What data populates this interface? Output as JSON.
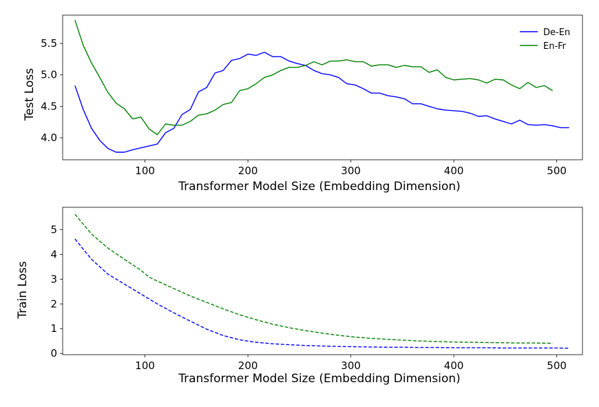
{
  "chart_data": [
    {
      "type": "line",
      "xlabel": "Transformer Model Size (Embedding Dimension)",
      "ylabel": "Test Loss",
      "xlim": [
        20,
        525
      ],
      "ylim": [
        3.65,
        5.95
      ],
      "xticks": [
        100,
        200,
        300,
        400,
        500
      ],
      "yticks": [
        4.0,
        4.5,
        5.0,
        5.5
      ],
      "ytick_decimals": 1,
      "grid": false,
      "legend": "top-right",
      "series": [
        {
          "name": "De-En",
          "color": "#0000ff",
          "style": "solid",
          "x": [
            32,
            40,
            48,
            56,
            64,
            72,
            80,
            88,
            96,
            104,
            112,
            120,
            128,
            136,
            144,
            152,
            160,
            168,
            176,
            184,
            192,
            200,
            208,
            216,
            224,
            232,
            240,
            248,
            256,
            264,
            272,
            280,
            288,
            296,
            304,
            312,
            320,
            328,
            336,
            344,
            352,
            360,
            368,
            376,
            384,
            392,
            400,
            408,
            416,
            424,
            432,
            440,
            448,
            456,
            464,
            472,
            480,
            488,
            496,
            504,
            512
          ],
          "values": [
            4.83,
            4.45,
            4.15,
            3.96,
            3.83,
            3.77,
            3.77,
            3.81,
            3.84,
            3.87,
            3.9,
            4.08,
            4.15,
            4.37,
            4.45,
            4.73,
            4.8,
            5.03,
            5.07,
            5.23,
            5.26,
            5.33,
            5.31,
            5.36,
            5.29,
            5.29,
            5.22,
            5.18,
            5.15,
            5.07,
            5.02,
            5.0,
            4.96,
            4.86,
            4.84,
            4.78,
            4.71,
            4.71,
            4.67,
            4.65,
            4.62,
            4.54,
            4.54,
            4.5,
            4.46,
            4.44,
            4.43,
            4.42,
            4.39,
            4.34,
            4.35,
            4.3,
            4.26,
            4.22,
            4.28,
            4.21,
            4.2,
            4.21,
            4.19,
            4.16,
            4.16
          ]
        },
        {
          "name": "En-Fr",
          "color": "#008000",
          "style": "solid",
          "x": [
            32,
            40,
            48,
            56,
            64,
            72,
            80,
            88,
            96,
            104,
            112,
            120,
            128,
            136,
            144,
            152,
            160,
            168,
            176,
            184,
            192,
            200,
            208,
            216,
            224,
            232,
            240,
            248,
            256,
            264,
            272,
            280,
            288,
            296,
            304,
            312,
            320,
            328,
            336,
            344,
            352,
            360,
            368,
            376,
            384,
            392,
            400,
            408,
            416,
            424,
            432,
            440,
            448,
            456,
            464,
            472,
            480,
            488,
            496
          ],
          "values": [
            5.87,
            5.47,
            5.19,
            4.96,
            4.72,
            4.55,
            4.46,
            4.3,
            4.33,
            4.14,
            4.05,
            4.22,
            4.2,
            4.2,
            4.26,
            4.36,
            4.38,
            4.44,
            4.53,
            4.56,
            4.75,
            4.78,
            4.86,
            4.96,
            5.0,
            5.07,
            5.12,
            5.12,
            5.15,
            5.21,
            5.16,
            5.22,
            5.22,
            5.24,
            5.21,
            5.21,
            5.14,
            5.16,
            5.16,
            5.12,
            5.15,
            5.13,
            5.13,
            5.04,
            5.08,
            4.96,
            4.92,
            4.93,
            4.94,
            4.92,
            4.87,
            4.93,
            4.92,
            4.84,
            4.78,
            4.88,
            4.8,
            4.83,
            4.75
          ]
        }
      ]
    },
    {
      "type": "line",
      "xlabel": "Transformer Model Size (Embedding Dimension)",
      "ylabel": "Train Loss",
      "xlim": [
        20,
        525
      ],
      "ylim": [
        -0.05,
        5.9
      ],
      "xticks": [
        100,
        200,
        300,
        400,
        500
      ],
      "yticks": [
        0,
        1,
        2,
        3,
        4,
        5
      ],
      "ytick_decimals": 0,
      "grid": false,
      "legend": "none",
      "series": [
        {
          "color": "#0000ff",
          "style": "dashed",
          "x": [
            32,
            48,
            64,
            80,
            96,
            112,
            128,
            144,
            160,
            176,
            192,
            208,
            224,
            240,
            256,
            272,
            288,
            304,
            320,
            336,
            352,
            368,
            384,
            400,
            416,
            432,
            448,
            464,
            480,
            496,
            512
          ],
          "values": [
            4.62,
            3.8,
            3.2,
            2.8,
            2.4,
            2.0,
            1.64,
            1.3,
            0.98,
            0.72,
            0.55,
            0.45,
            0.39,
            0.35,
            0.32,
            0.3,
            0.28,
            0.27,
            0.26,
            0.25,
            0.25,
            0.24,
            0.24,
            0.23,
            0.23,
            0.23,
            0.22,
            0.22,
            0.22,
            0.22,
            0.21
          ]
        },
        {
          "color": "#008000",
          "style": "dashed",
          "x": [
            32,
            48,
            64,
            80,
            96,
            104,
            112,
            128,
            144,
            160,
            176,
            192,
            208,
            224,
            240,
            256,
            272,
            288,
            304,
            320,
            336,
            352,
            368,
            384,
            400,
            416,
            432,
            448,
            464,
            480,
            496
          ],
          "values": [
            5.62,
            4.82,
            4.25,
            3.8,
            3.36,
            3.08,
            2.92,
            2.62,
            2.32,
            2.06,
            1.8,
            1.56,
            1.36,
            1.18,
            1.04,
            0.92,
            0.82,
            0.73,
            0.66,
            0.61,
            0.57,
            0.53,
            0.5,
            0.48,
            0.46,
            0.45,
            0.44,
            0.43,
            0.42,
            0.42,
            0.41
          ]
        }
      ]
    }
  ]
}
